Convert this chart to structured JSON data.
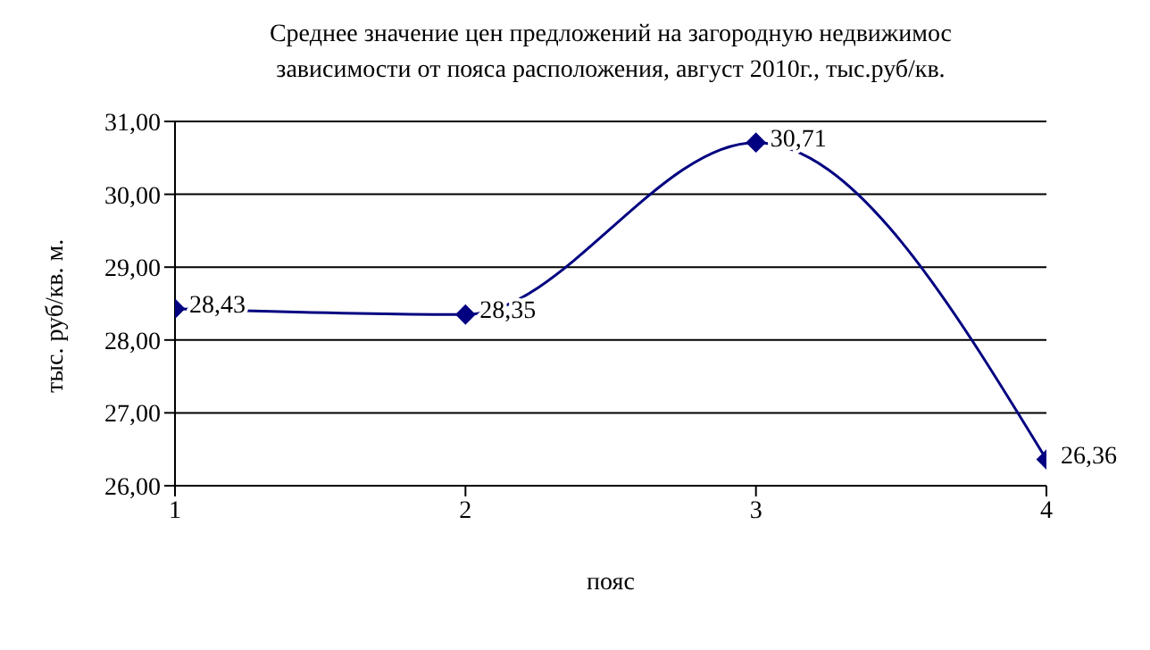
{
  "chart_data": {
    "type": "line",
    "title": "Среднее значение цен предложений на загородную недвижимос\nзависимости от пояса расположения, август 2010г., тыс.руб/кв.",
    "xlabel": "пояс",
    "ylabel": "тыс. руб/кв. м.",
    "x": [
      1,
      2,
      3,
      4
    ],
    "series": [
      {
        "color": "#000080",
        "values": [
          28.43,
          28.35,
          30.71,
          26.36
        ],
        "value_labels": [
          "28,43",
          "28,35",
          "30,71",
          "26,36"
        ]
      }
    ],
    "xlim": [
      1,
      4
    ],
    "xticks": [
      1,
      2,
      3,
      4
    ],
    "ylim": [
      26,
      31
    ],
    "yticks": [
      {
        "value": 26,
        "label": "26,00"
      },
      {
        "value": 27,
        "label": "27,00"
      },
      {
        "value": 28,
        "label": "28,00"
      },
      {
        "value": 29,
        "label": "29,00"
      },
      {
        "value": 30,
        "label": "30,00"
      },
      {
        "value": 31,
        "label": "31,00"
      }
    ],
    "grid": "y",
    "marker": "diamond",
    "line_style": "solid"
  }
}
